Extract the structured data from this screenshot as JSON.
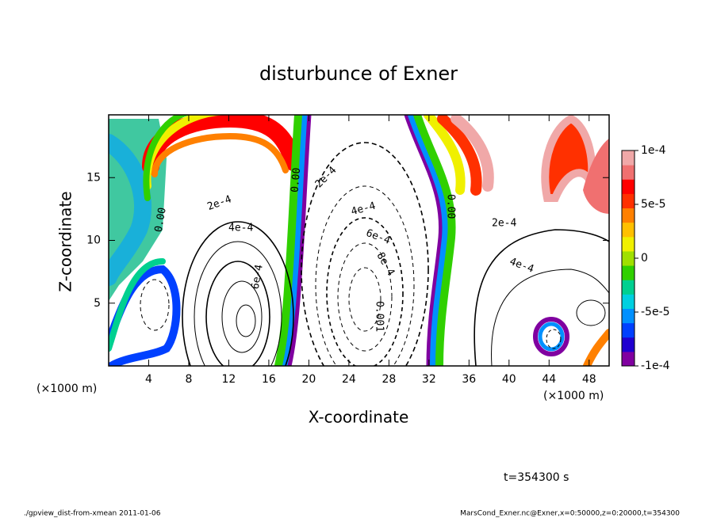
{
  "chart_data": {
    "type": "contour",
    "title": "disturbunce of Exner",
    "xlabel": "X-coordinate",
    "ylabel": "Z-coordinate",
    "xunit": "(×1000 m)",
    "xunit2": "(×1000 m)",
    "xlim": [
      0,
      50
    ],
    "xticks": [
      4,
      8,
      12,
      16,
      20,
      24,
      28,
      32,
      36,
      40,
      44,
      48
    ],
    "ylim": [
      0,
      20
    ],
    "yticks": [
      5,
      10,
      15
    ],
    "colorbar": {
      "clim": [
        -0.0001,
        0.0001
      ],
      "ticks": [
        {
          "value": 0.0001,
          "label": "1e-4"
        },
        {
          "value": 5e-05,
          "label": "5e-5"
        },
        {
          "value": 0,
          "label": "0"
        },
        {
          "value": -5e-05,
          "label": "-5e-5"
        },
        {
          "value": -0.0001,
          "label": "-1e-4"
        }
      ],
      "colors": [
        "#8000a0",
        "#2000d0",
        "#0040ff",
        "#0090ff",
        "#00d0e0",
        "#00d090",
        "#30d000",
        "#a0e000",
        "#f0f000",
        "#ffc000",
        "#ff8000",
        "#ff3000",
        "#ff0000",
        "#f07070",
        "#f0a8a8"
      ]
    },
    "contour_labels": [
      "2e-4",
      "4e-4",
      "6e-4",
      "0.00",
      "0.00",
      "2e-4",
      "4e-4",
      "6e-4",
      "8e-4",
      "0.001",
      "0.00",
      "2e-4",
      "4e-4"
    ],
    "time_label": "t=354300 s",
    "footer_left": "./gpview_dist-from-xmean  2011-01-06",
    "footer_right": "MarsCond_Exner.nc@Exner,x=0:50000,z=0:20000,t=354300"
  }
}
